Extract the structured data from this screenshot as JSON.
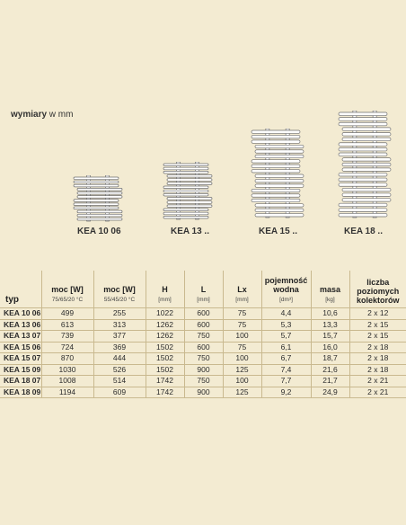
{
  "heading": {
    "bold": "wymiary",
    "rest": " w mm"
  },
  "models": [
    {
      "label": "KEA 10 06",
      "bar_count": 12
    },
    {
      "label": "KEA 13 ..",
      "bar_count": 15
    },
    {
      "label": "KEA 15 ..",
      "bar_count": 18
    },
    {
      "label": "KEA 18 ..",
      "bar_count": 21
    }
  ],
  "table": {
    "headers": [
      {
        "label": "typ",
        "unit": ""
      },
      {
        "label": "moc [W]",
        "unit": "75/65/20 °C"
      },
      {
        "label": "moc [W]",
        "unit": "55/45/20 °C"
      },
      {
        "label": "H",
        "unit": "[mm]"
      },
      {
        "label": "L",
        "unit": "[mm]"
      },
      {
        "label": "Lx",
        "unit": "[mm]"
      },
      {
        "label": "pojemność wodna",
        "unit": "[dm³]"
      },
      {
        "label": "masa",
        "unit": "[kg]"
      },
      {
        "label": "liczba poziomych kolektorów",
        "unit": ""
      }
    ],
    "rows": [
      [
        "KEA 10 06",
        "499",
        "255",
        "1022",
        "600",
        "75",
        "4,4",
        "10,6",
        "2 x 12"
      ],
      [
        "KEA 13 06",
        "613",
        "313",
        "1262",
        "600",
        "75",
        "5,3",
        "13,3",
        "2 x 15"
      ],
      [
        "KEA 13 07",
        "739",
        "377",
        "1262",
        "750",
        "100",
        "5,7",
        "15,7",
        "2 x 15"
      ],
      [
        "KEA 15 06",
        "724",
        "369",
        "1502",
        "600",
        "75",
        "6,1",
        "16,0",
        "2 x 18"
      ],
      [
        "KEA 15 07",
        "870",
        "444",
        "1502",
        "750",
        "100",
        "6,7",
        "18,7",
        "2 x 18"
      ],
      [
        "KEA 15 09",
        "1030",
        "526",
        "1502",
        "900",
        "125",
        "7,4",
        "21,6",
        "2 x 18"
      ],
      [
        "KEA 18 07",
        "1008",
        "514",
        "1742",
        "750",
        "100",
        "7,7",
        "21,7",
        "2 x 21"
      ],
      [
        "KEA 18 09",
        "1194",
        "609",
        "1742",
        "900",
        "125",
        "9,2",
        "24,9",
        "2 x 21"
      ]
    ]
  }
}
